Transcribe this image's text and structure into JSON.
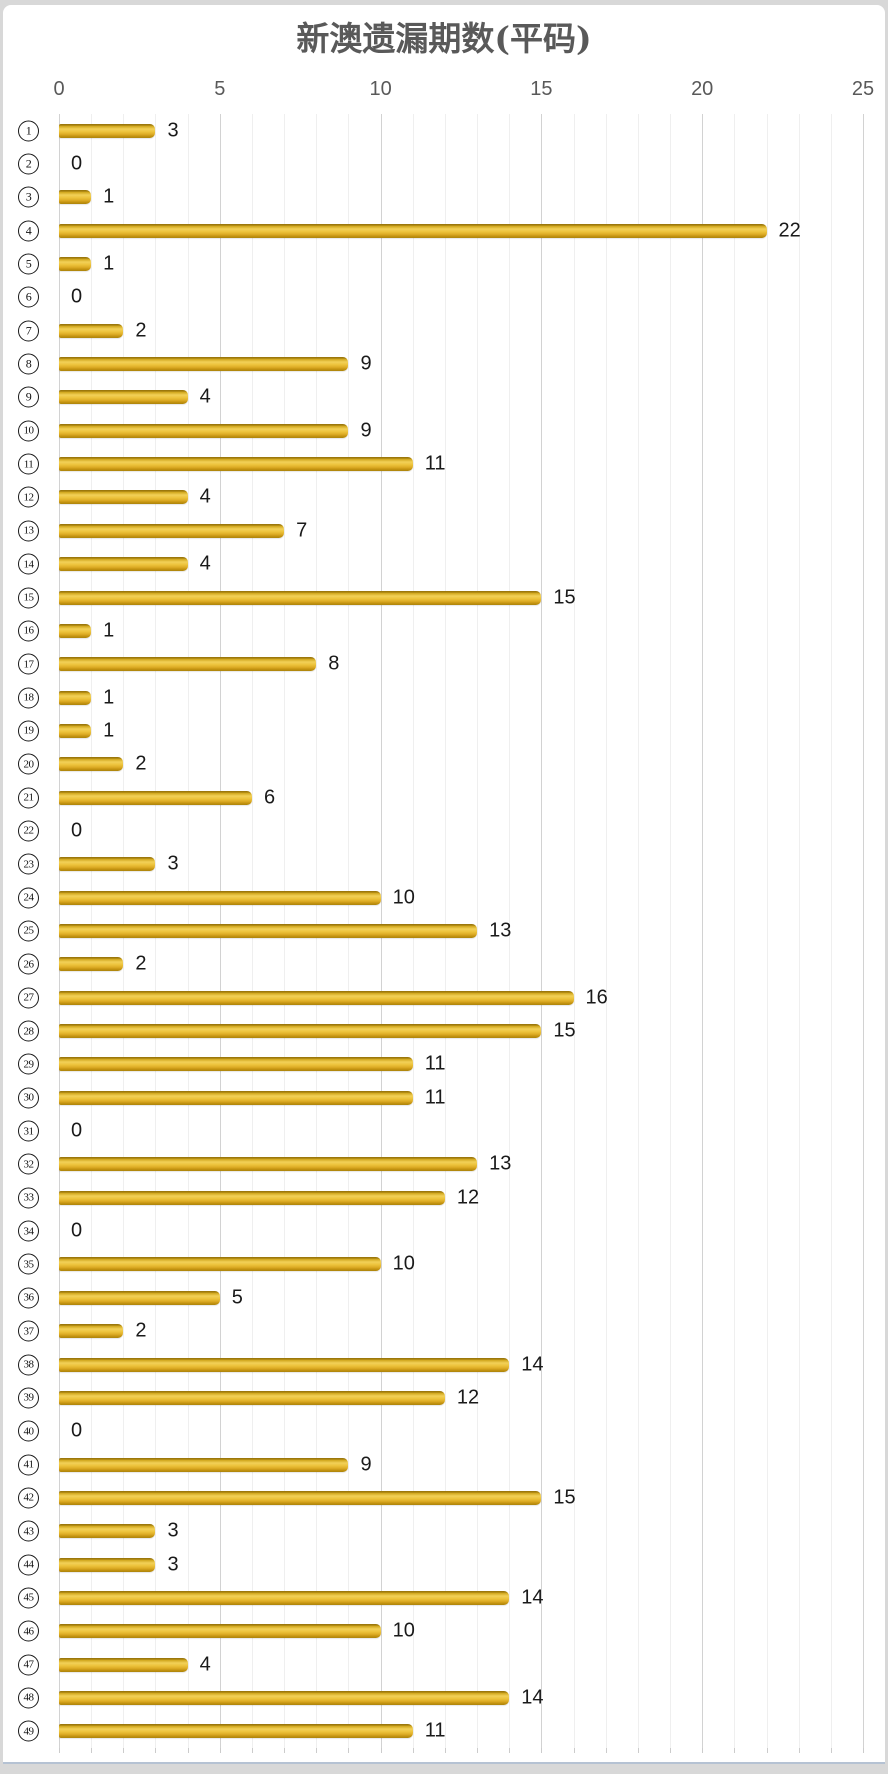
{
  "chart_data": {
    "type": "bar",
    "orientation": "horizontal",
    "title": "新澳遗漏期数(平码)",
    "category_style": "circled-number",
    "categories": [
      "1",
      "2",
      "3",
      "4",
      "5",
      "6",
      "7",
      "8",
      "9",
      "10",
      "11",
      "12",
      "13",
      "14",
      "15",
      "16",
      "17",
      "18",
      "19",
      "20",
      "21",
      "22",
      "23",
      "24",
      "25",
      "26",
      "27",
      "28",
      "29",
      "30",
      "31",
      "32",
      "33",
      "34",
      "35",
      "36",
      "37",
      "38",
      "39",
      "40",
      "41",
      "42",
      "43",
      "44",
      "45",
      "46",
      "47",
      "48",
      "49"
    ],
    "values": [
      3,
      0,
      1,
      22,
      1,
      0,
      2,
      9,
      4,
      9,
      11,
      4,
      7,
      4,
      15,
      1,
      8,
      1,
      1,
      2,
      6,
      0,
      3,
      10,
      13,
      2,
      16,
      15,
      11,
      11,
      0,
      13,
      12,
      0,
      10,
      5,
      2,
      14,
      12,
      0,
      9,
      15,
      3,
      3,
      14,
      10,
      4,
      14,
      11
    ],
    "x_axis": {
      "position": "top",
      "min": 0,
      "max": 25,
      "major_ticks": [
        0,
        5,
        10,
        15,
        20,
        25
      ],
      "minor_unit": 1
    },
    "value_labels": "end-of-bar",
    "legend": false,
    "grid": "vertical-minor-and-major",
    "colors": {
      "bar_mid": "#E2B32C",
      "bar_highlight": "#F2D158",
      "bar_shadow": "#A6800E",
      "grid_minor": "#EFEFEF",
      "grid_major": "#D2D2D2",
      "axis_text": "#595959",
      "value_text": "#1A1A1A",
      "title_text": "#595959",
      "frame_bottom": "#B5C2D3"
    }
  }
}
